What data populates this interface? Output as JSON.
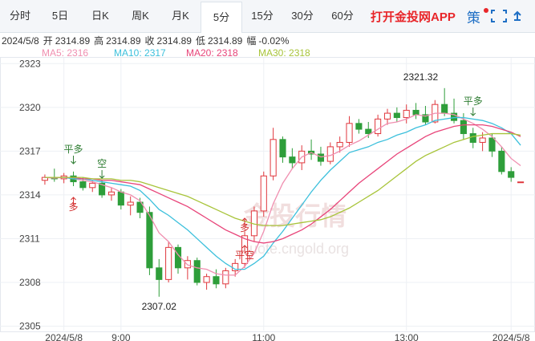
{
  "toolbar": {
    "tabs": [
      "分时",
      "5日",
      "日K",
      "周K",
      "月K",
      "5分",
      "15分",
      "30分",
      "60分"
    ],
    "app": "打开金投网APP",
    "strategy": "策"
  },
  "info": {
    "date": "2024/5/8",
    "items": [
      {
        "label": "开",
        "value": 2314.89
      },
      {
        "label": "高",
        "value": 2314.89
      },
      {
        "label": "收",
        "value": 2314.89
      },
      {
        "label": "低",
        "value": 2314.89
      }
    ],
    "change_label": "幅",
    "change": "-0.02%"
  },
  "watermark": {
    "name": "金投行情",
    "url": "quote.cngold.org"
  },
  "chart_data": {
    "type": "candlestick",
    "categories": [
      null,
      null,
      "2024/5/8",
      null,
      null,
      null,
      null,
      null,
      "9:00",
      null,
      null,
      null,
      null,
      null,
      null,
      null,
      null,
      null,
      null,
      null,
      null,
      null,
      null,
      "11:00",
      null,
      null,
      null,
      null,
      null,
      null,
      null,
      null,
      null,
      null,
      null,
      null,
      null,
      null,
      "13:00",
      null,
      null,
      null,
      null,
      null,
      null,
      null,
      null,
      null,
      null,
      "2024/5/8",
      null
    ],
    "open": [
      2315.0,
      2315.2,
      2315.1,
      2315.3,
      2314.9,
      2314.5,
      2314.8,
      2314.0,
      2314.2,
      2313.3,
      2313.5,
      2312.8,
      2309.0,
      2308.2,
      2310.4,
      2309.0,
      2309.5,
      2308.0,
      2308.4,
      2307.9,
      2308.8,
      2309.3,
      2311.2,
      2312.9,
      2315.3,
      2317.8,
      2316.6,
      2316.2,
      2317.0,
      2316.8,
      2316.3,
      2317.3,
      2317.6,
      2318.9,
      2318.5,
      2318.2,
      2319.2,
      2319.6,
      2319.3,
      2319.8,
      2319.5,
      2319.0,
      2320.2,
      2319.6,
      2319.1,
      2318.2,
      2317.6,
      2317.9,
      2317.0,
      2315.6,
      2314.89
    ],
    "high": [
      2315.4,
      2315.8,
      2315.5,
      2315.6,
      2315.2,
      2315.0,
      2315.0,
      2314.5,
      2314.4,
      2313.9,
      2313.8,
      2313.2,
      2309.6,
      2310.8,
      2310.6,
      2309.8,
      2309.7,
      2308.6,
      2308.9,
      2309.0,
      2309.6,
      2311.5,
      2313.2,
      2315.6,
      2318.6,
      2318.0,
      2317.2,
      2317.4,
      2317.8,
      2317.3,
      2317.6,
      2318.0,
      2319.4,
      2319.2,
      2319.0,
      2319.5,
      2319.9,
      2320.0,
      2320.2,
      2320.3,
      2320.1,
      2320.5,
      2321.32,
      2320.6,
      2319.6,
      2318.6,
      2318.3,
      2318.2,
      2317.3,
      2315.9,
      2314.89
    ],
    "low": [
      2314.7,
      2314.9,
      2314.8,
      2314.6,
      2314.3,
      2314.2,
      2313.8,
      2313.6,
      2313.0,
      2312.6,
      2312.4,
      2308.5,
      2307.02,
      2308.0,
      2308.6,
      2308.2,
      2307.8,
      2307.5,
      2307.6,
      2307.6,
      2308.4,
      2309.0,
      2310.8,
      2312.5,
      2315.0,
      2316.2,
      2315.8,
      2315.7,
      2316.4,
      2316.0,
      2316.1,
      2316.9,
      2317.3,
      2318.2,
      2317.9,
      2318.0,
      2318.8,
      2319.0,
      2318.9,
      2319.2,
      2318.8,
      2318.9,
      2319.4,
      2318.9,
      2317.8,
      2317.2,
      2317.0,
      2316.6,
      2315.4,
      2314.9,
      2314.89
    ],
    "close": [
      2315.2,
      2315.1,
      2315.3,
      2314.9,
      2314.5,
      2314.8,
      2314.0,
      2314.2,
      2313.3,
      2313.5,
      2312.8,
      2309.0,
      2308.2,
      2310.4,
      2309.0,
      2309.5,
      2308.0,
      2308.4,
      2307.9,
      2308.8,
      2309.3,
      2311.2,
      2312.9,
      2315.3,
      2317.8,
      2316.6,
      2316.2,
      2317.0,
      2316.8,
      2316.3,
      2317.3,
      2317.6,
      2318.9,
      2318.5,
      2318.2,
      2319.2,
      2319.6,
      2319.3,
      2319.8,
      2319.5,
      2319.0,
      2320.2,
      2319.6,
      2319.1,
      2318.2,
      2317.6,
      2317.9,
      2317.0,
      2315.6,
      2315.2,
      2314.89
    ],
    "up_color": "#e0373d",
    "down_color": "#2e9e3a",
    "series": [
      {
        "name": "MA5",
        "color": "#f08fb0",
        "last": 2316,
        "values": [
          2315.2,
          2315.15,
          2315.2,
          2315.1,
          2315.0,
          2314.9,
          2314.7,
          2314.5,
          2314.2,
          2314.0,
          2313.6,
          2312.6,
          2311.4,
          2310.8,
          2309.9,
          2309.2,
          2309.0,
          2308.9,
          2308.6,
          2308.5,
          2308.5,
          2309.1,
          2310.0,
          2311.5,
          2313.4,
          2314.8,
          2315.8,
          2316.6,
          2316.9,
          2316.6,
          2316.7,
          2317.0,
          2317.4,
          2317.7,
          2318.1,
          2318.5,
          2318.9,
          2319.0,
          2319.2,
          2319.5,
          2319.4,
          2319.6,
          2319.6,
          2319.5,
          2319.2,
          2318.9,
          2318.5,
          2318.0,
          2317.3,
          2316.5,
          2316.0
        ]
      },
      {
        "name": "MA10",
        "color": "#3cc0dc",
        "last": 2317,
        "values": [
          2315.2,
          2315.2,
          2315.2,
          2315.1,
          2315.1,
          2315.0,
          2314.9,
          2314.8,
          2314.7,
          2314.6,
          2314.3,
          2313.7,
          2313.0,
          2312.6,
          2312.1,
          2311.6,
          2311.0,
          2310.4,
          2309.8,
          2309.3,
          2308.9,
          2308.9,
          2309.3,
          2309.8,
          2310.7,
          2311.5,
          2312.4,
          2313.3,
          2314.2,
          2315.0,
          2315.7,
          2316.3,
          2316.9,
          2317.1,
          2317.3,
          2317.6,
          2317.8,
          2318.1,
          2318.3,
          2318.6,
          2318.8,
          2319.1,
          2319.2,
          2319.3,
          2319.3,
          2319.2,
          2319.1,
          2318.9,
          2318.6,
          2318.2,
          2317.4
        ]
      },
      {
        "name": "MA20",
        "color": "#e8457a",
        "last": 2318,
        "values": [
          2315.2,
          2315.2,
          2315.2,
          2315.2,
          2315.1,
          2315.1,
          2315.0,
          2315.0,
          2314.9,
          2314.8,
          2314.7,
          2314.4,
          2314.1,
          2313.8,
          2313.5,
          2313.2,
          2312.8,
          2312.4,
          2312.0,
          2311.6,
          2311.3,
          2311.0,
          2310.8,
          2310.7,
          2310.8,
          2311.0,
          2311.3,
          2311.6,
          2312.0,
          2312.5,
          2313.0,
          2313.6,
          2314.2,
          2314.8,
          2315.3,
          2315.8,
          2316.3,
          2316.8,
          2317.2,
          2317.6,
          2318.0,
          2318.3,
          2318.5,
          2318.7,
          2318.8,
          2318.8,
          2318.8,
          2318.7,
          2318.5,
          2318.3,
          2318.0
        ]
      },
      {
        "name": "MA30",
        "color": "#a8c43a",
        "last": 2318,
        "values": [
          2315.2,
          2315.2,
          2315.2,
          2315.2,
          2315.2,
          2315.1,
          2315.1,
          2315.1,
          2315.0,
          2315.0,
          2314.9,
          2314.7,
          2314.5,
          2314.3,
          2314.1,
          2313.9,
          2313.6,
          2313.3,
          2313.0,
          2312.7,
          2312.4,
          2312.2,
          2312.0,
          2311.9,
          2311.9,
          2311.9,
          2312.0,
          2312.1,
          2312.2,
          2312.3,
          2312.5,
          2312.8,
          2313.1,
          2313.5,
          2313.9,
          2314.3,
          2314.8,
          2315.3,
          2315.8,
          2316.3,
          2316.7,
          2317.0,
          2317.3,
          2317.6,
          2317.8,
          2318.0,
          2318.1,
          2318.2,
          2318.2,
          2318.2,
          2318.1
        ]
      }
    ],
    "signals": [
      "平多",
      "空",
      "多",
      "平空",
      "多",
      "平多"
    ],
    "ylim": [
      2304.7,
      2323.4
    ],
    "yticks": [
      2323,
      2320,
      2317,
      2314,
      2311,
      2308,
      2305
    ],
    "grid": true
  }
}
